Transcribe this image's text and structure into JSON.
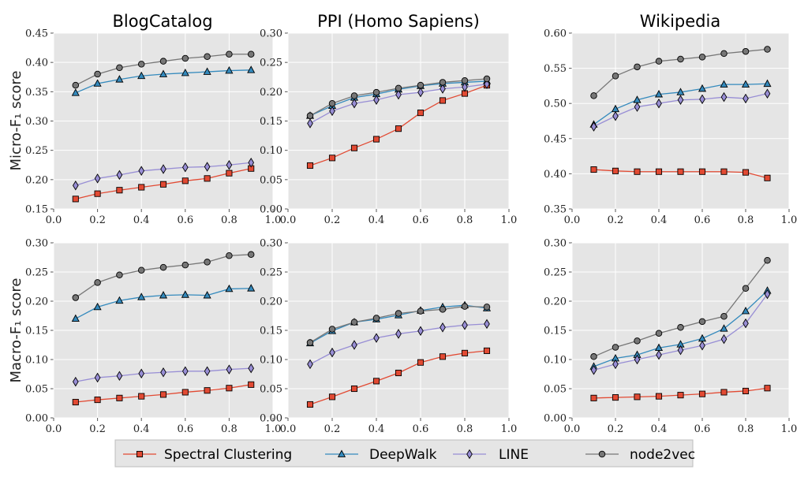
{
  "figure": {
    "column_titles": [
      "BlogCatalog",
      "PPI (Homo Sapiens)",
      "Wikipedia"
    ],
    "row_labels": [
      "Micro-F₁ score",
      "Macro-F₁ score"
    ]
  },
  "legend": {
    "items": [
      {
        "name": "Spectral Clustering",
        "color": "#e24a33",
        "marker": "square"
      },
      {
        "name": "DeepWalk",
        "color": "#348abd",
        "marker": "triangle"
      },
      {
        "name": "LINE",
        "color": "#988ed5",
        "marker": "diamond"
      },
      {
        "name": "node2vec",
        "color": "#777777",
        "marker": "circle"
      }
    ]
  },
  "chart_data": [
    {
      "type": "line",
      "title": "BlogCatalog",
      "ylabel": "Micro-F₁ score",
      "xlim": [
        0.0,
        1.0
      ],
      "ylim": [
        0.15,
        0.45
      ],
      "xticks": [
        "0.0",
        "0.2",
        "0.4",
        "0.6",
        "0.8",
        "1.0"
      ],
      "yticks": [
        "0.15",
        "0.20",
        "0.25",
        "0.30",
        "0.35",
        "0.40",
        "0.45"
      ],
      "x": [
        0.1,
        0.2,
        0.3,
        0.4,
        0.5,
        0.6,
        0.7,
        0.8,
        0.9
      ],
      "series": [
        {
          "name": "Spectral Clustering",
          "values": [
            0.167,
            0.176,
            0.182,
            0.187,
            0.192,
            0.198,
            0.202,
            0.211,
            0.219
          ]
        },
        {
          "name": "DeepWalk",
          "values": [
            0.348,
            0.364,
            0.371,
            0.377,
            0.38,
            0.382,
            0.384,
            0.386,
            0.387
          ]
        },
        {
          "name": "LINE",
          "values": [
            0.19,
            0.202,
            0.208,
            0.215,
            0.218,
            0.221,
            0.222,
            0.225,
            0.229
          ]
        },
        {
          "name": "node2vec",
          "values": [
            0.361,
            0.38,
            0.391,
            0.397,
            0.402,
            0.407,
            0.41,
            0.414,
            0.414
          ]
        }
      ]
    },
    {
      "type": "line",
      "title": "PPI (Homo Sapiens)",
      "xlim": [
        0.0,
        1.0
      ],
      "ylim": [
        0.0,
        0.3
      ],
      "xticks": [
        "0.0",
        "0.2",
        "0.4",
        "0.6",
        "0.8",
        "1.0"
      ],
      "yticks": [
        "0.00",
        "0.05",
        "0.10",
        "0.15",
        "0.20",
        "0.25",
        "0.30"
      ],
      "x": [
        0.1,
        0.2,
        0.3,
        0.4,
        0.5,
        0.6,
        0.7,
        0.8,
        0.9
      ],
      "series": [
        {
          "name": "Spectral Clustering",
          "values": [
            0.074,
            0.087,
            0.104,
            0.119,
            0.137,
            0.164,
            0.185,
            0.197,
            0.211
          ]
        },
        {
          "name": "DeepWalk",
          "values": [
            0.159,
            0.176,
            0.19,
            0.196,
            0.204,
            0.21,
            0.214,
            0.216,
            0.218
          ]
        },
        {
          "name": "LINE",
          "values": [
            0.146,
            0.167,
            0.18,
            0.186,
            0.195,
            0.199,
            0.205,
            0.208,
            0.213
          ]
        },
        {
          "name": "node2vec",
          "values": [
            0.159,
            0.18,
            0.193,
            0.199,
            0.206,
            0.211,
            0.216,
            0.219,
            0.222
          ]
        }
      ]
    },
    {
      "type": "line",
      "title": "Wikipedia",
      "xlim": [
        0.0,
        1.0
      ],
      "ylim": [
        0.35,
        0.6
      ],
      "xticks": [
        "0.0",
        "0.2",
        "0.4",
        "0.6",
        "0.8",
        "1.0"
      ],
      "yticks": [
        "0.35",
        "0.40",
        "0.45",
        "0.50",
        "0.55",
        "0.60"
      ],
      "x": [
        0.1,
        0.2,
        0.3,
        0.4,
        0.5,
        0.6,
        0.7,
        0.8,
        0.9
      ],
      "series": [
        {
          "name": "Spectral Clustering",
          "values": [
            0.406,
            0.404,
            0.403,
            0.403,
            0.403,
            0.403,
            0.403,
            0.402,
            0.394
          ]
        },
        {
          "name": "DeepWalk",
          "values": [
            0.47,
            0.492,
            0.505,
            0.513,
            0.516,
            0.521,
            0.527,
            0.527,
            0.528
          ]
        },
        {
          "name": "LINE",
          "values": [
            0.467,
            0.482,
            0.495,
            0.5,
            0.505,
            0.506,
            0.509,
            0.507,
            0.514
          ]
        },
        {
          "name": "node2vec",
          "values": [
            0.511,
            0.539,
            0.552,
            0.56,
            0.563,
            0.566,
            0.571,
            0.574,
            0.577
          ]
        }
      ]
    },
    {
      "type": "line",
      "title": "BlogCatalog",
      "ylabel": "Macro-F₁ score",
      "xlim": [
        0.0,
        1.0
      ],
      "ylim": [
        0.0,
        0.3
      ],
      "xticks": [
        "0.0",
        "0.2",
        "0.4",
        "0.6",
        "0.8",
        "1.0"
      ],
      "yticks": [
        "0.00",
        "0.05",
        "0.10",
        "0.15",
        "0.20",
        "0.25",
        "0.30"
      ],
      "x": [
        0.1,
        0.2,
        0.3,
        0.4,
        0.5,
        0.6,
        0.7,
        0.8,
        0.9
      ],
      "series": [
        {
          "name": "Spectral Clustering",
          "values": [
            0.027,
            0.031,
            0.034,
            0.037,
            0.04,
            0.044,
            0.047,
            0.051,
            0.057
          ]
        },
        {
          "name": "DeepWalk",
          "values": [
            0.17,
            0.19,
            0.201,
            0.207,
            0.21,
            0.211,
            0.21,
            0.221,
            0.222
          ]
        },
        {
          "name": "LINE",
          "values": [
            0.062,
            0.069,
            0.072,
            0.076,
            0.078,
            0.08,
            0.08,
            0.083,
            0.085
          ]
        },
        {
          "name": "node2vec",
          "values": [
            0.206,
            0.232,
            0.245,
            0.253,
            0.258,
            0.262,
            0.267,
            0.278,
            0.28
          ]
        }
      ]
    },
    {
      "type": "line",
      "title": "PPI (Homo Sapiens)",
      "xlim": [
        0.0,
        1.0
      ],
      "ylim": [
        0.0,
        0.3
      ],
      "xticks": [
        "0.0",
        "0.2",
        "0.4",
        "0.6",
        "0.8",
        "1.0"
      ],
      "yticks": [
        "0.00",
        "0.05",
        "0.10",
        "0.15",
        "0.20",
        "0.25",
        "0.30"
      ],
      "x": [
        0.1,
        0.2,
        0.3,
        0.4,
        0.5,
        0.6,
        0.7,
        0.8,
        0.9
      ],
      "series": [
        {
          "name": "Spectral Clustering",
          "values": [
            0.023,
            0.036,
            0.05,
            0.063,
            0.077,
            0.095,
            0.105,
            0.111,
            0.115
          ]
        },
        {
          "name": "DeepWalk",
          "values": [
            0.128,
            0.149,
            0.164,
            0.169,
            0.176,
            0.184,
            0.19,
            0.193,
            0.188
          ]
        },
        {
          "name": "LINE",
          "values": [
            0.092,
            0.112,
            0.125,
            0.137,
            0.144,
            0.149,
            0.155,
            0.159,
            0.161
          ]
        },
        {
          "name": "node2vec",
          "values": [
            0.129,
            0.152,
            0.164,
            0.171,
            0.179,
            0.183,
            0.186,
            0.191,
            0.19
          ]
        }
      ]
    },
    {
      "type": "line",
      "title": "Wikipedia",
      "xlim": [
        0.0,
        1.0
      ],
      "ylim": [
        0.0,
        0.3
      ],
      "xticks": [
        "0.0",
        "0.2",
        "0.4",
        "0.6",
        "0.8",
        "1.0"
      ],
      "yticks": [
        "0.00",
        "0.05",
        "0.10",
        "0.15",
        "0.20",
        "0.25",
        "0.30"
      ],
      "x": [
        0.1,
        0.2,
        0.3,
        0.4,
        0.5,
        0.6,
        0.7,
        0.8,
        0.9
      ],
      "series": [
        {
          "name": "Spectral Clustering",
          "values": [
            0.034,
            0.035,
            0.036,
            0.037,
            0.039,
            0.041,
            0.044,
            0.046,
            0.051
          ]
        },
        {
          "name": "DeepWalk",
          "values": [
            0.088,
            0.102,
            0.108,
            0.12,
            0.126,
            0.136,
            0.153,
            0.183,
            0.218
          ]
        },
        {
          "name": "LINE",
          "values": [
            0.082,
            0.092,
            0.1,
            0.108,
            0.116,
            0.124,
            0.135,
            0.162,
            0.212
          ]
        },
        {
          "name": "node2vec",
          "values": [
            0.105,
            0.121,
            0.132,
            0.145,
            0.155,
            0.165,
            0.174,
            0.222,
            0.27
          ]
        }
      ]
    }
  ]
}
